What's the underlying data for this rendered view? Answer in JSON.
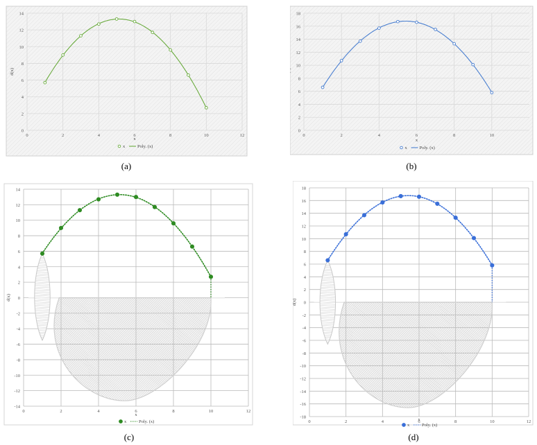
{
  "chart_data": [
    {
      "panel": "a",
      "type": "scatter",
      "caption": "(a)",
      "xlabel": "x",
      "ylabel": "d(x)",
      "xlim": [
        0,
        12
      ],
      "ylim": [
        0,
        14
      ],
      "xticks": [
        "0",
        "2",
        "4",
        "6",
        "8",
        "10",
        "12"
      ],
      "yticks": [
        "0",
        "2",
        "4",
        "6",
        "8",
        "10",
        "12",
        "14"
      ],
      "grid": true,
      "legend_position": "bottom",
      "legend": [
        "x",
        "Poly. (x)"
      ],
      "color": "#6aab3e",
      "marker": "open-circle",
      "trend": "polynomial",
      "x": [
        1,
        2,
        3,
        4,
        5,
        6,
        7,
        8,
        9,
        10
      ],
      "y": [
        5.7,
        9.0,
        11.3,
        12.7,
        13.3,
        13.0,
        11.7,
        9.6,
        6.6,
        2.7
      ]
    },
    {
      "panel": "b",
      "type": "scatter",
      "caption": "(b)",
      "xlabel": "x",
      "ylabel": "d(x)",
      "xlim": [
        0,
        12
      ],
      "ylim": [
        0,
        18
      ],
      "xticks": [
        "0",
        "2",
        "4",
        "6",
        "8",
        "10"
      ],
      "yticks": [
        "0",
        "2",
        "4",
        "6",
        "8",
        "10",
        "12",
        "14",
        "16",
        "18"
      ],
      "grid": true,
      "legend_position": "bottom",
      "legend": [
        "x",
        "Poly. (x)"
      ],
      "color": "#4a7fd0",
      "marker": "open-circle",
      "trend": "polynomial",
      "x": [
        1,
        2,
        3,
        4,
        5,
        6,
        7,
        8,
        9,
        10
      ],
      "y": [
        6.6,
        10.7,
        13.7,
        15.7,
        16.7,
        16.6,
        15.5,
        13.3,
        10.1,
        5.8
      ]
    },
    {
      "panel": "c",
      "type": "scatter",
      "caption": "(c)",
      "xlabel": "x",
      "ylabel": "d(x)",
      "xlim": [
        0,
        12
      ],
      "ylim": [
        -14,
        14
      ],
      "xticks": [
        "0",
        "2",
        "4",
        "6",
        "8",
        "10",
        "12"
      ],
      "yticks": [
        "-14",
        "-12",
        "-10",
        "-8",
        "-6",
        "-4",
        "-2",
        "0",
        "2",
        "4",
        "6",
        "8",
        "10",
        "12",
        "14"
      ],
      "grid": true,
      "legend_position": "bottom",
      "legend": [
        "x",
        "Poly. (x)"
      ],
      "color": "#2e8b22",
      "marker": "filled-circle",
      "trend": "polynomial-dotted",
      "x": [
        1,
        2,
        3,
        4,
        5,
        6,
        7,
        8,
        9,
        10
      ],
      "y": [
        5.7,
        9.0,
        11.3,
        12.7,
        13.3,
        13.0,
        11.7,
        9.6,
        6.6,
        2.7
      ],
      "lens_y_range": [
        -5.5,
        5.7
      ],
      "bowl_bottom_y": -13.3
    },
    {
      "panel": "d",
      "type": "scatter",
      "caption": "(d)",
      "xlabel": "x",
      "ylabel": "d(x)",
      "xlim": [
        0,
        12
      ],
      "ylim": [
        -18,
        18
      ],
      "xticks": [
        "0",
        "2",
        "4",
        "6",
        "8",
        "10",
        "12"
      ],
      "yticks": [
        "-18",
        "-16",
        "-14",
        "-12",
        "-10",
        "-8",
        "-6",
        "-4",
        "-2",
        "0",
        "2",
        "4",
        "6",
        "8",
        "10",
        "12",
        "14",
        "16",
        "18"
      ],
      "grid": true,
      "legend_position": "bottom",
      "legend": [
        "x",
        "Poly. (x)"
      ],
      "color": "#3a6fd8",
      "marker": "filled-circle",
      "trend": "polynomial-dotted",
      "x": [
        1,
        2,
        3,
        4,
        5,
        6,
        7,
        8,
        9,
        10
      ],
      "y": [
        6.6,
        10.7,
        13.7,
        15.7,
        16.7,
        16.6,
        15.5,
        13.3,
        10.1,
        5.8
      ],
      "lens_y_range": [
        -6.6,
        6.6
      ],
      "bowl_bottom_y": -16.6
    }
  ]
}
